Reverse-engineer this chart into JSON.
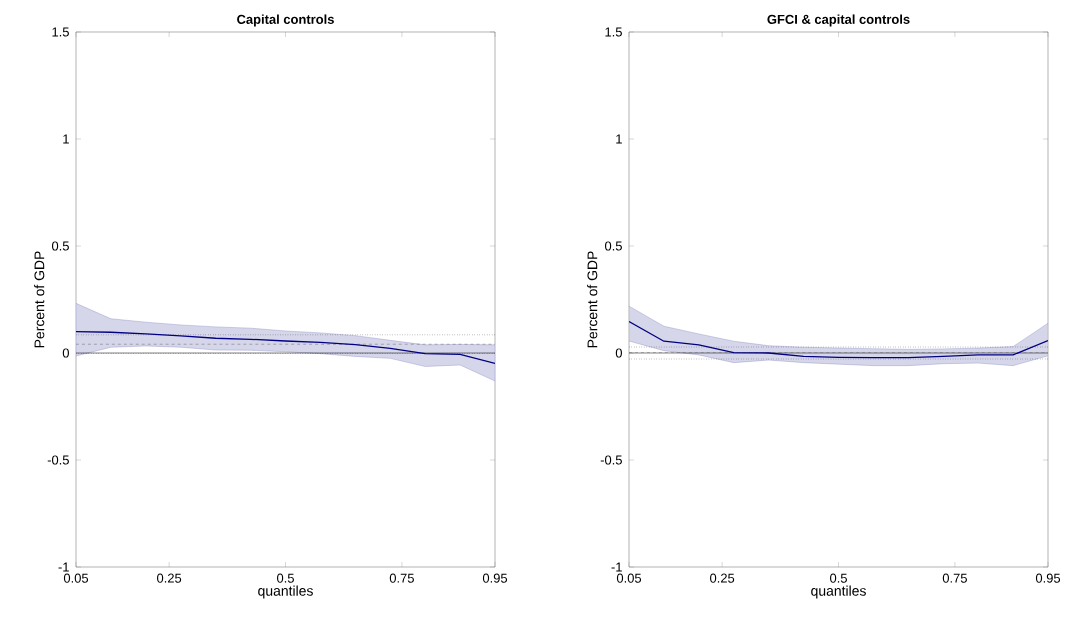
{
  "chart_data": [
    {
      "type": "line",
      "title": "Capital controls",
      "xlabel": "quantiles",
      "ylabel": "Percent of GDP",
      "xlim": [
        0.05,
        0.95
      ],
      "ylim": [
        -1,
        1.5
      ],
      "xticks": [
        0.05,
        0.25,
        0.5,
        0.75,
        0.95
      ],
      "yticks": [
        -1,
        -0.5,
        0,
        0.5,
        1,
        1.5
      ],
      "x": [
        0.05,
        0.125,
        0.2,
        0.275,
        0.35,
        0.425,
        0.5,
        0.575,
        0.65,
        0.725,
        0.8,
        0.875,
        0.95
      ],
      "series": [
        {
          "color": "#000080",
          "values": [
            0.1,
            0.097,
            0.089,
            0.08,
            0.069,
            0.064,
            0.056,
            0.05,
            0.039,
            0.022,
            -0.003,
            -0.006,
            -0.049
          ],
          "lower": [
            -0.014,
            0.027,
            0.033,
            0.027,
            0.014,
            0.013,
            0.006,
            -0.003,
            -0.016,
            -0.025,
            -0.063,
            -0.056,
            -0.131
          ],
          "upper": [
            0.232,
            0.16,
            0.144,
            0.131,
            0.122,
            0.116,
            0.103,
            0.094,
            0.081,
            0.059,
            0.038,
            0.04,
            0.038
          ]
        }
      ],
      "ref_lines": [
        {
          "axis": "y",
          "value": 0,
          "color": "#000000",
          "line_style": "solid"
        },
        {
          "axis": "y",
          "value": 0.041,
          "color": "#666666",
          "line_style": "dashed"
        },
        {
          "axis": "y",
          "value": 0.085,
          "color": "#000000",
          "line_style": "dotted"
        },
        {
          "axis": "y",
          "value": -0.003,
          "color": "#000000",
          "line_style": "dotted"
        }
      ]
    },
    {
      "type": "line",
      "title": "GFCI & capital controls",
      "xlabel": "quantiles",
      "ylabel": "Percent of GDP",
      "xlim": [
        0.05,
        0.95
      ],
      "ylim": [
        -1,
        1.5
      ],
      "xticks": [
        0.05,
        0.25,
        0.5,
        0.75,
        0.95
      ],
      "yticks": [
        -1,
        -0.5,
        0,
        0.5,
        1,
        1.5
      ],
      "x": [
        0.05,
        0.125,
        0.2,
        0.275,
        0.35,
        0.425,
        0.5,
        0.575,
        0.65,
        0.725,
        0.8,
        0.875,
        0.95
      ],
      "series": [
        {
          "color": "#000080",
          "values": [
            0.147,
            0.055,
            0.038,
            0.002,
            0.0,
            -0.016,
            -0.02,
            -0.022,
            -0.022,
            -0.016,
            -0.009,
            -0.009,
            0.058
          ],
          "lower": [
            0.056,
            0.011,
            -0.009,
            -0.045,
            -0.033,
            -0.045,
            -0.052,
            -0.059,
            -0.059,
            -0.05,
            -0.047,
            -0.059,
            -0.013
          ],
          "upper": [
            0.219,
            0.125,
            0.089,
            0.055,
            0.034,
            0.027,
            0.023,
            0.02,
            0.017,
            0.019,
            0.023,
            0.03,
            0.139
          ]
        }
      ],
      "ref_lines": [
        {
          "axis": "y",
          "value": 0,
          "color": "#000000",
          "line_style": "solid"
        },
        {
          "axis": "y",
          "value": 0.003,
          "color": "#666666",
          "line_style": "dashed"
        },
        {
          "axis": "y",
          "value": 0.028,
          "color": "#000000",
          "line_style": "dotted"
        },
        {
          "axis": "y",
          "value": -0.028,
          "color": "#000000",
          "line_style": "dotted"
        }
      ]
    }
  ]
}
